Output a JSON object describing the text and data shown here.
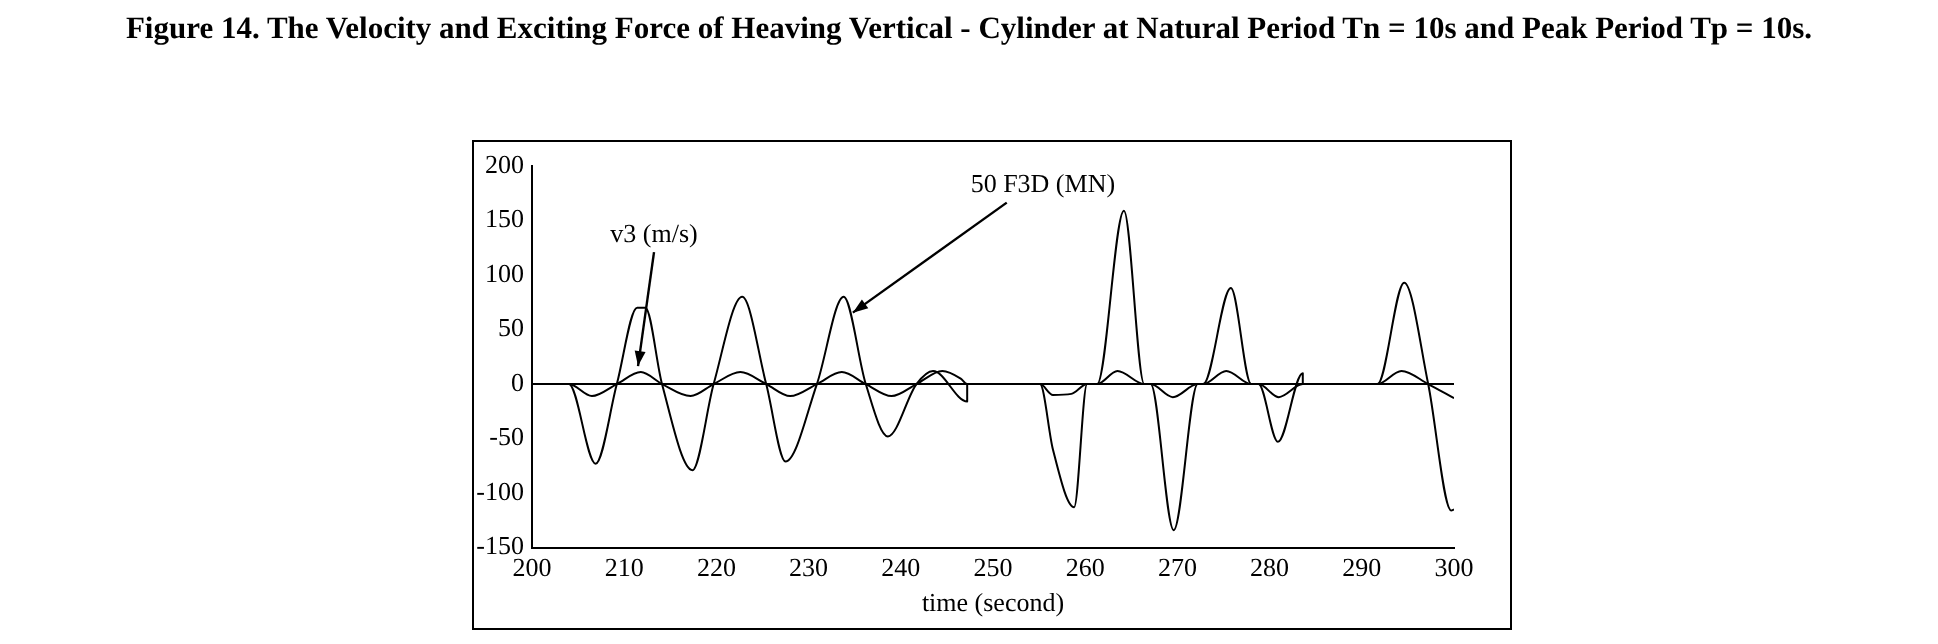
{
  "chart_data": {
    "type": "line",
    "title": "Figure 14. The Velocity and Exciting Force of Heaving Vertical - Cylinder at Natural Period Tn = 10s and Peak Period Tp = 10s.",
    "xlabel": "time (second)",
    "xlim": [
      200,
      300
    ],
    "xticks": [
      200,
      210,
      220,
      230,
      240,
      250,
      260,
      270,
      280,
      290,
      300
    ],
    "ylim": [
      -150,
      200
    ],
    "yticks": [
      -150,
      -100,
      -50,
      0,
      50,
      100,
      150,
      200
    ],
    "grid": false,
    "legend": false,
    "marker": "none",
    "line_style": "solid",
    "ref_lines": [
      {
        "axis": "y",
        "value": 0,
        "color": "#000000"
      }
    ],
    "series": [
      {
        "color": "#000000",
        "x": [
          200,
          204,
          206.9,
          209.2,
          211.4,
          212.3,
          214.1,
          217.4,
          219.7,
          222.8,
          225.4,
          227.5,
          230.9,
          233.8,
          236.2,
          238.6,
          241.7,
          243.5,
          247.2,
          247.2,
          255.1,
          256.5,
          258.8,
          260.2,
          261.3,
          264.2,
          266.4,
          267.1,
          269.6,
          272.2,
          272.8,
          275.8,
          278.0,
          278.8,
          280.9,
          283.6,
          283.6,
          291.7,
          294.6,
          297.2,
          299.7,
          300
        ],
        "values": [
          0,
          0,
          -73,
          0,
          70,
          70,
          0,
          -79,
          0,
          80,
          0,
          -71,
          0,
          80,
          0,
          -48,
          0,
          12,
          -16,
          0,
          0,
          -60,
          -113,
          0,
          0,
          159,
          0,
          0,
          -134,
          0,
          0,
          88,
          0,
          0,
          -53,
          10,
          0,
          0,
          93,
          0,
          -116,
          -115
        ]
      },
      {
        "color": "#000000",
        "x": [
          200,
          204,
          206.5,
          209.2,
          211.8,
          214.1,
          217.2,
          219.7,
          222.6,
          225.4,
          228,
          230.9,
          233.6,
          236.2,
          239,
          241.7,
          244.5,
          246.5,
          247.2,
          255.1,
          256.5,
          258.5,
          260.2,
          261.3,
          263.5,
          266.4,
          267.1,
          269.5,
          272.2,
          272.8,
          275.3,
          278,
          278.8,
          281,
          283.6,
          291.7,
          294.3,
          297.2,
          300
        ],
        "values": [
          0,
          0,
          -11,
          0,
          11,
          0,
          -11,
          0,
          11,
          0,
          -11,
          0,
          11,
          0,
          -11,
          0,
          12,
          5,
          0,
          0,
          -10,
          -9,
          0,
          0,
          12,
          0,
          0,
          -12,
          0,
          0,
          12,
          0,
          0,
          -12,
          0,
          0,
          12,
          0,
          -13
        ]
      }
    ],
    "annotations": [
      {
        "text": "v3 (m/s)",
        "x": 211.5,
        "y": 11
      },
      {
        "text": "50 F3D (MN)",
        "x": 234.8,
        "y": 60
      }
    ]
  }
}
